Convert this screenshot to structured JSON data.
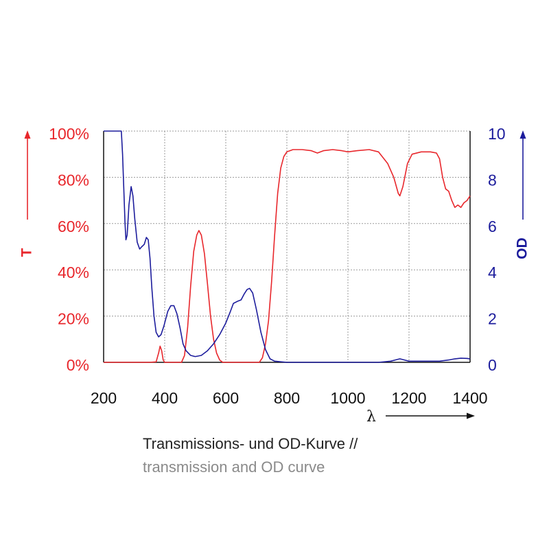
{
  "colors": {
    "transmission": "#e8262b",
    "od": "#1c1c9c",
    "grid": "#9a9a9a",
    "axis": "#111111",
    "caption_dark": "#222222",
    "caption_light": "#8a8a8a"
  },
  "caption": {
    "line1": "Transmissions- und OD-Kurve //",
    "line2": "transmission and OD curve"
  },
  "chart_data": {
    "type": "line",
    "title": "",
    "xlabel": "λ",
    "ylabel_left": "T",
    "ylabel_right": "OD",
    "xlim": [
      200,
      1400
    ],
    "ylim_left": [
      0,
      100
    ],
    "ylim_right": [
      0,
      10
    ],
    "grid": true,
    "x_ticks": [
      200,
      400,
      600,
      800,
      1000,
      1200,
      1400
    ],
    "x_tick_labels": [
      "200",
      "400",
      "600",
      "800",
      "1000",
      "1200",
      "1400"
    ],
    "y_left_ticks": [
      0,
      20,
      40,
      60,
      80,
      100
    ],
    "y_left_tick_labels": [
      "0%",
      "20%",
      "40%",
      "60%",
      "80%",
      "100%"
    ],
    "y_right_ticks": [
      0,
      2,
      4,
      6,
      8,
      10
    ],
    "y_right_tick_labels": [
      "0",
      "2",
      "4",
      "6",
      "8",
      "10"
    ],
    "series": [
      {
        "name": "T",
        "axis": "left",
        "points": [
          [
            200,
            0
          ],
          [
            350,
            0
          ],
          [
            372,
            0.2
          ],
          [
            380,
            4
          ],
          [
            385,
            7
          ],
          [
            390,
            5
          ],
          [
            395,
            1
          ],
          [
            400,
            0
          ],
          [
            455,
            0
          ],
          [
            465,
            3
          ],
          [
            475,
            15
          ],
          [
            485,
            33
          ],
          [
            495,
            48
          ],
          [
            505,
            55
          ],
          [
            512,
            57
          ],
          [
            520,
            55
          ],
          [
            530,
            47
          ],
          [
            540,
            34
          ],
          [
            550,
            20
          ],
          [
            560,
            10
          ],
          [
            570,
            4
          ],
          [
            580,
            1
          ],
          [
            590,
            0
          ],
          [
            710,
            0
          ],
          [
            720,
            2
          ],
          [
            730,
            8
          ],
          [
            740,
            18
          ],
          [
            750,
            35
          ],
          [
            760,
            55
          ],
          [
            770,
            73
          ],
          [
            780,
            84
          ],
          [
            790,
            89
          ],
          [
            800,
            91
          ],
          [
            820,
            92
          ],
          [
            850,
            92
          ],
          [
            880,
            91.5
          ],
          [
            900,
            90.5
          ],
          [
            920,
            91.5
          ],
          [
            950,
            92
          ],
          [
            980,
            91.5
          ],
          [
            1000,
            91
          ],
          [
            1030,
            91.5
          ],
          [
            1070,
            92
          ],
          [
            1100,
            91
          ],
          [
            1130,
            86
          ],
          [
            1150,
            80
          ],
          [
            1165,
            73
          ],
          [
            1170,
            72
          ],
          [
            1180,
            76
          ],
          [
            1195,
            86
          ],
          [
            1210,
            90
          ],
          [
            1240,
            91
          ],
          [
            1270,
            91
          ],
          [
            1290,
            90.5
          ],
          [
            1300,
            88
          ],
          [
            1310,
            80
          ],
          [
            1320,
            75
          ],
          [
            1330,
            74
          ],
          [
            1340,
            70
          ],
          [
            1350,
            67
          ],
          [
            1360,
            68
          ],
          [
            1370,
            67
          ],
          [
            1380,
            69
          ],
          [
            1390,
            70
          ],
          [
            1400,
            72
          ]
        ]
      },
      {
        "name": "OD",
        "axis": "right",
        "points": [
          [
            200,
            10
          ],
          [
            258,
            10
          ],
          [
            262,
            9
          ],
          [
            266,
            7.5
          ],
          [
            270,
            6
          ],
          [
            273,
            5.3
          ],
          [
            277,
            5.5
          ],
          [
            283,
            6.8
          ],
          [
            290,
            7.6
          ],
          [
            296,
            7.2
          ],
          [
            302,
            6.2
          ],
          [
            310,
            5.2
          ],
          [
            318,
            4.9
          ],
          [
            325,
            5
          ],
          [
            333,
            5.1
          ],
          [
            340,
            5.4
          ],
          [
            346,
            5.3
          ],
          [
            352,
            4.5
          ],
          [
            358,
            3.2
          ],
          [
            365,
            2
          ],
          [
            372,
            1.3
          ],
          [
            380,
            1.1
          ],
          [
            388,
            1.2
          ],
          [
            398,
            1.6
          ],
          [
            410,
            2.2
          ],
          [
            420,
            2.45
          ],
          [
            430,
            2.45
          ],
          [
            440,
            2.1
          ],
          [
            450,
            1.5
          ],
          [
            460,
            0.8
          ],
          [
            470,
            0.5
          ],
          [
            485,
            0.3
          ],
          [
            500,
            0.25
          ],
          [
            520,
            0.3
          ],
          [
            540,
            0.5
          ],
          [
            560,
            0.8
          ],
          [
            580,
            1.2
          ],
          [
            600,
            1.7
          ],
          [
            615,
            2.2
          ],
          [
            625,
            2.55
          ],
          [
            640,
            2.65
          ],
          [
            650,
            2.7
          ],
          [
            660,
            2.95
          ],
          [
            670,
            3.15
          ],
          [
            678,
            3.2
          ],
          [
            688,
            3
          ],
          [
            700,
            2.3
          ],
          [
            715,
            1.3
          ],
          [
            730,
            0.55
          ],
          [
            745,
            0.15
          ],
          [
            760,
            0.05
          ],
          [
            800,
            0
          ],
          [
            1100,
            0
          ],
          [
            1140,
            0.05
          ],
          [
            1160,
            0.12
          ],
          [
            1170,
            0.15
          ],
          [
            1180,
            0.12
          ],
          [
            1200,
            0.05
          ],
          [
            1300,
            0.05
          ],
          [
            1330,
            0.1
          ],
          [
            1350,
            0.15
          ],
          [
            1370,
            0.18
          ],
          [
            1390,
            0.17
          ],
          [
            1400,
            0.15
          ]
        ]
      }
    ]
  }
}
